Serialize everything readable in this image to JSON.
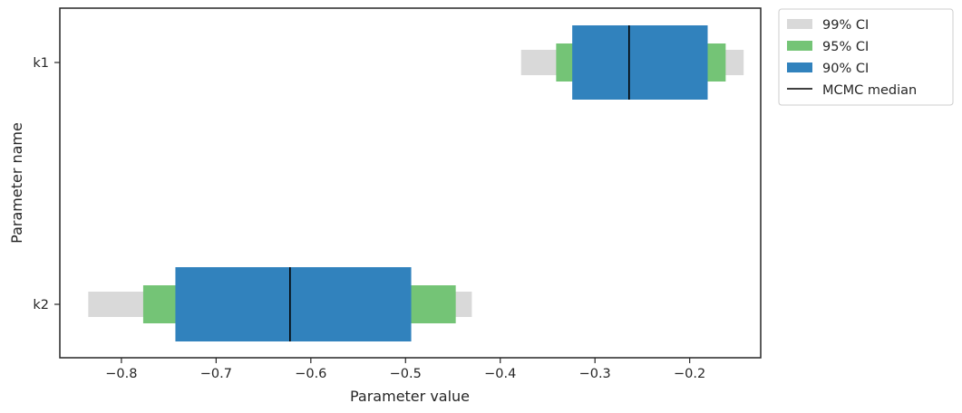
{
  "chart_data": {
    "type": "bar",
    "orientation": "horizontal",
    "xlabel": "Parameter value",
    "ylabel": "Parameter name",
    "xlim": [
      -0.865,
      -0.125
    ],
    "x_ticks": [
      -0.8,
      -0.7,
      -0.6,
      -0.5,
      -0.4,
      -0.3,
      -0.2
    ],
    "x_tick_labels": [
      "−0.8",
      "−0.7",
      "−0.6",
      "−0.5",
      "−0.4",
      "−0.3",
      "−0.2"
    ],
    "categories": [
      "k1",
      "k2"
    ],
    "series": [
      {
        "name": "99% CI",
        "color": "#d9d9d9",
        "intervals": [
          [
            -0.378,
            -0.143
          ],
          [
            -0.835,
            -0.43
          ]
        ]
      },
      {
        "name": "95% CI",
        "color": "#74c476",
        "intervals": [
          [
            -0.341,
            -0.162
          ],
          [
            -0.777,
            -0.447
          ]
        ]
      },
      {
        "name": "90% CI",
        "color": "#3182bd",
        "intervals": [
          [
            -0.324,
            -0.181
          ],
          [
            -0.743,
            -0.494
          ]
        ]
      }
    ],
    "median": {
      "name": "MCMC median",
      "color": "#000000",
      "values": [
        -0.264,
        -0.622
      ]
    },
    "grid": false,
    "legend_position": "outside-top-right"
  }
}
